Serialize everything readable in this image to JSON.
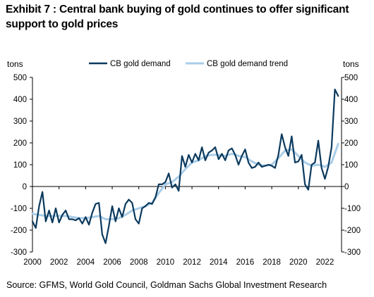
{
  "title": "Exhibit 7 : Central bank buying of gold continues to offer significant support to gold prices",
  "source": "Source: GFMS, World Gold Council, Goldman Sachs Global Investment Research",
  "chart_data": {
    "type": "line",
    "left_axis_label": "tons",
    "right_axis_label": "tons",
    "ylim": [
      -300,
      500
    ],
    "yticks": [
      -300,
      -200,
      -100,
      0,
      100,
      200,
      300,
      400,
      500
    ],
    "xlim": [
      2000,
      2023.25
    ],
    "xticks": [
      2000,
      2002,
      2004,
      2006,
      2008,
      2010,
      2012,
      2014,
      2016,
      2018,
      2020,
      2022
    ],
    "grid": false,
    "legend_position": "top",
    "series": [
      {
        "name": "CB gold demand",
        "color": "#0b3a5e",
        "points": [
          [
            2000.0,
            -160
          ],
          [
            2000.25,
            -190
          ],
          [
            2000.5,
            -90
          ],
          [
            2000.75,
            -25
          ],
          [
            2001.0,
            -160
          ],
          [
            2001.25,
            -110
          ],
          [
            2001.5,
            -165
          ],
          [
            2001.75,
            -100
          ],
          [
            2002.0,
            -165
          ],
          [
            2002.25,
            -130
          ],
          [
            2002.5,
            -110
          ],
          [
            2002.75,
            -150
          ],
          [
            2003.0,
            -150
          ],
          [
            2003.25,
            -155
          ],
          [
            2003.5,
            -145
          ],
          [
            2003.75,
            -170
          ],
          [
            2004.0,
            -140
          ],
          [
            2004.25,
            -175
          ],
          [
            2004.5,
            -120
          ],
          [
            2004.75,
            -80
          ],
          [
            2005.0,
            -75
          ],
          [
            2005.25,
            -220
          ],
          [
            2005.5,
            -260
          ],
          [
            2005.75,
            -180
          ],
          [
            2006.0,
            -90
          ],
          [
            2006.25,
            -160
          ],
          [
            2006.5,
            -100
          ],
          [
            2006.75,
            -140
          ],
          [
            2007.0,
            -80
          ],
          [
            2007.25,
            -60
          ],
          [
            2007.5,
            -75
          ],
          [
            2007.75,
            -150
          ],
          [
            2008.0,
            -170
          ],
          [
            2008.25,
            -100
          ],
          [
            2008.5,
            -90
          ],
          [
            2008.75,
            -75
          ],
          [
            2009.0,
            -80
          ],
          [
            2009.25,
            -50
          ],
          [
            2009.5,
            10
          ],
          [
            2009.75,
            10
          ],
          [
            2010.0,
            20
          ],
          [
            2010.25,
            60
          ],
          [
            2010.5,
            -5
          ],
          [
            2010.75,
            10
          ],
          [
            2011.0,
            -20
          ],
          [
            2011.25,
            140
          ],
          [
            2011.5,
            90
          ],
          [
            2011.75,
            145
          ],
          [
            2012.0,
            110
          ],
          [
            2012.25,
            150
          ],
          [
            2012.5,
            120
          ],
          [
            2012.75,
            180
          ],
          [
            2013.0,
            120
          ],
          [
            2013.25,
            155
          ],
          [
            2013.5,
            165
          ],
          [
            2013.75,
            180
          ],
          [
            2014.0,
            125
          ],
          [
            2014.25,
            150
          ],
          [
            2014.5,
            120
          ],
          [
            2014.75,
            165
          ],
          [
            2015.0,
            175
          ],
          [
            2015.25,
            145
          ],
          [
            2015.5,
            100
          ],
          [
            2015.75,
            140
          ],
          [
            2016.0,
            170
          ],
          [
            2016.25,
            110
          ],
          [
            2016.5,
            85
          ],
          [
            2016.75,
            90
          ],
          [
            2017.0,
            110
          ],
          [
            2017.25,
            90
          ],
          [
            2017.5,
            95
          ],
          [
            2017.75,
            100
          ],
          [
            2018.0,
            95
          ],
          [
            2018.25,
            85
          ],
          [
            2018.5,
            145
          ],
          [
            2018.75,
            240
          ],
          [
            2019.0,
            180
          ],
          [
            2019.25,
            140
          ],
          [
            2019.5,
            230
          ],
          [
            2019.75,
            110
          ],
          [
            2020.0,
            115
          ],
          [
            2020.25,
            145
          ],
          [
            2020.5,
            10
          ],
          [
            2020.75,
            -15
          ],
          [
            2021.0,
            100
          ],
          [
            2021.25,
            110
          ],
          [
            2021.5,
            210
          ],
          [
            2021.75,
            85
          ],
          [
            2022.0,
            35
          ],
          [
            2022.25,
            90
          ],
          [
            2022.5,
            180
          ],
          [
            2022.75,
            445
          ],
          [
            2023.0,
            415
          ]
        ]
      },
      {
        "name": "CB gold demand trend",
        "color": "#a9cde8",
        "points": [
          [
            2000.0,
            -125
          ],
          [
            2000.5,
            -130
          ],
          [
            2001.0,
            -135
          ],
          [
            2001.5,
            -135
          ],
          [
            2002.0,
            -135
          ],
          [
            2002.5,
            -135
          ],
          [
            2003.0,
            -140
          ],
          [
            2003.5,
            -145
          ],
          [
            2004.0,
            -145
          ],
          [
            2004.5,
            -140
          ],
          [
            2005.0,
            -135
          ],
          [
            2005.5,
            -150
          ],
          [
            2006.0,
            -150
          ],
          [
            2006.5,
            -145
          ],
          [
            2007.0,
            -130
          ],
          [
            2007.5,
            -110
          ],
          [
            2008.0,
            -100
          ],
          [
            2008.5,
            -90
          ],
          [
            2009.0,
            -75
          ],
          [
            2009.5,
            -30
          ],
          [
            2010.0,
            10
          ],
          [
            2010.5,
            20
          ],
          [
            2011.0,
            45
          ],
          [
            2011.5,
            80
          ],
          [
            2012.0,
            110
          ],
          [
            2012.5,
            120
          ],
          [
            2013.0,
            140
          ],
          [
            2013.5,
            145
          ],
          [
            2014.0,
            145
          ],
          [
            2014.5,
            140
          ],
          [
            2015.0,
            150
          ],
          [
            2015.5,
            140
          ],
          [
            2016.0,
            135
          ],
          [
            2016.5,
            115
          ],
          [
            2017.0,
            100
          ],
          [
            2017.5,
            95
          ],
          [
            2018.0,
            100
          ],
          [
            2018.5,
            130
          ],
          [
            2019.0,
            165
          ],
          [
            2019.5,
            170
          ],
          [
            2020.0,
            140
          ],
          [
            2020.5,
            110
          ],
          [
            2021.0,
            95
          ],
          [
            2021.5,
            100
          ],
          [
            2022.0,
            90
          ],
          [
            2022.5,
            110
          ],
          [
            2023.0,
            195
          ]
        ]
      }
    ]
  }
}
